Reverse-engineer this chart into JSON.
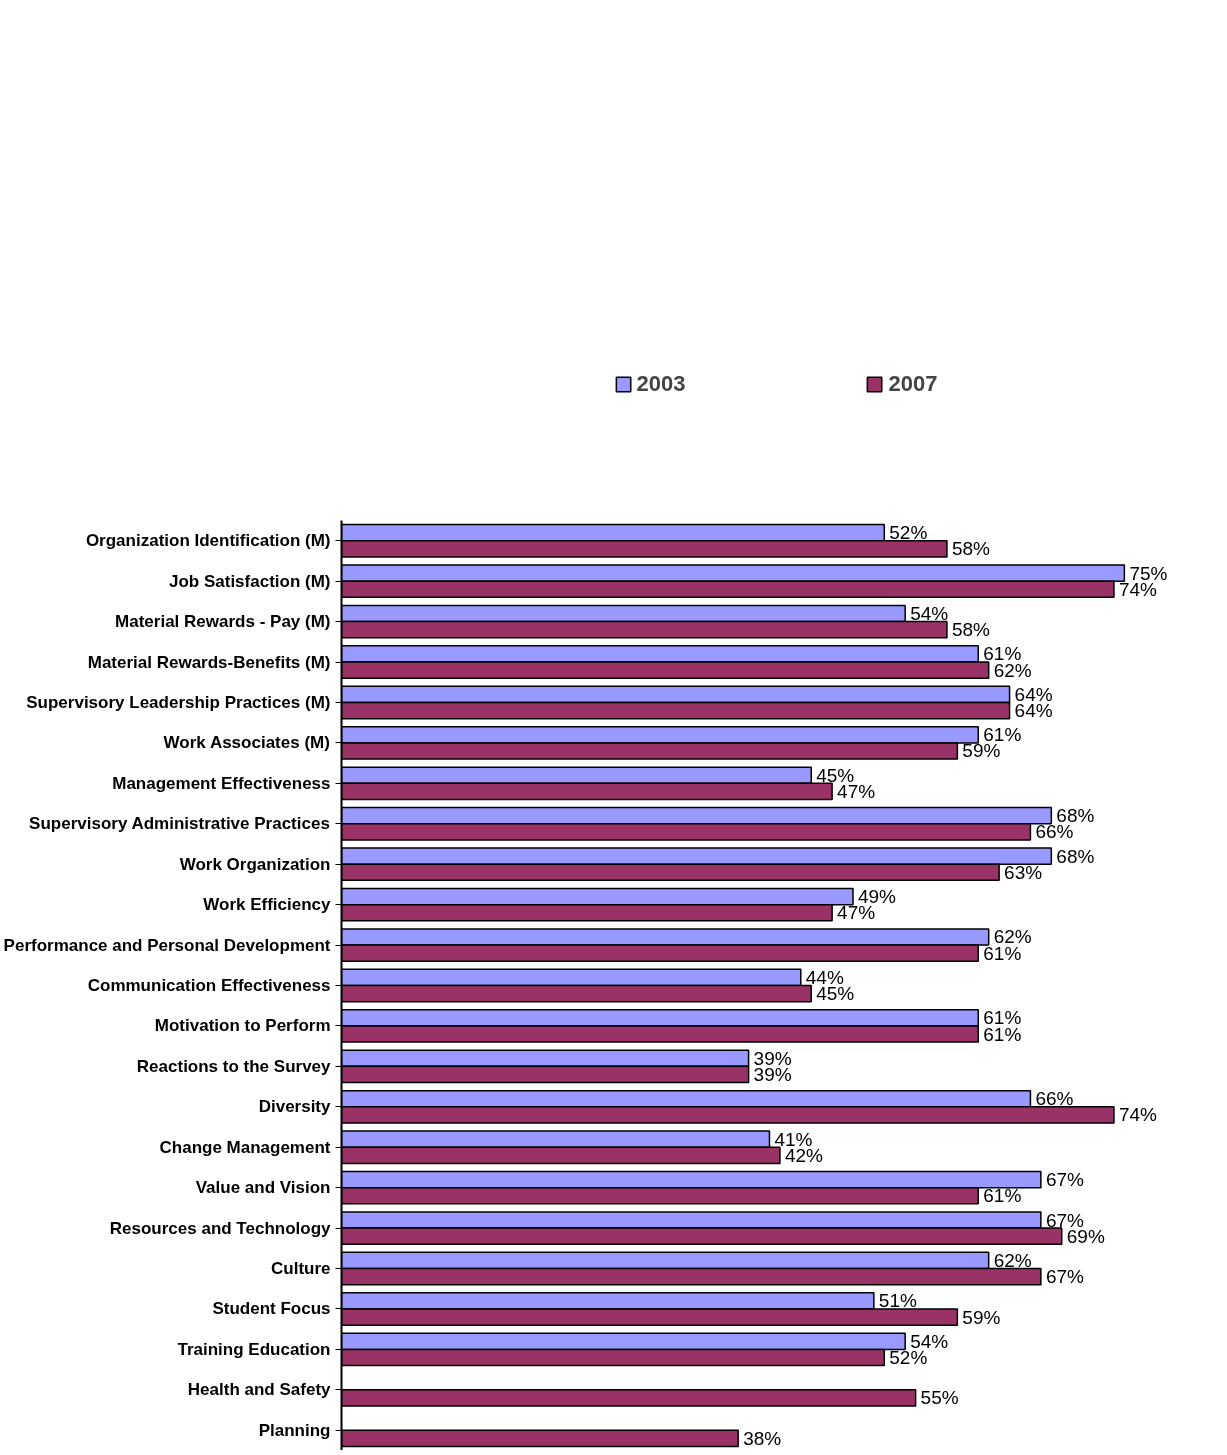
{
  "chart_data": {
    "type": "bar",
    "orientation": "horizontal",
    "legend": "top",
    "categories": [
      "Organization Identification (M)",
      "Job Satisfaction (M)",
      "Material Rewards - Pay (M)",
      "Material Rewards-Benefits (M)",
      "Supervisory Leadership Practices (M)",
      "Work Associates (M)",
      "Management Effectiveness",
      "Supervisory Administrative Practices",
      "Work Organization",
      "Work Efficiency",
      "Performance and Personal Development",
      "Communication Effectiveness",
      "Motivation to Perform",
      "Reactions to the Survey",
      "Diversity",
      "Change Management",
      "Value and Vision",
      "Resources and Technology",
      "Culture",
      "Student Focus",
      "Training Education",
      "Health and Safety",
      "Planning"
    ],
    "series": [
      {
        "name": "2003",
        "color": "#9999ff",
        "values": [
          52,
          75,
          54,
          61,
          64,
          61,
          45,
          68,
          68,
          49,
          62,
          44,
          61,
          39,
          66,
          41,
          67,
          67,
          62,
          51,
          54,
          null,
          null
        ],
        "value_labels": [
          "52%",
          "75%",
          "54%",
          "61%",
          "64%",
          "61%",
          "45%",
          "68%",
          "68%",
          "49%",
          "62%",
          "44%",
          "61%",
          "39%",
          "66%",
          "41%",
          "67%",
          "67%",
          "62%",
          "51%",
          "54%",
          null,
          null
        ]
      },
      {
        "name": "2007",
        "color": "#993366",
        "values": [
          58,
          74,
          58,
          62,
          64,
          59,
          47,
          66,
          63,
          47,
          61,
          45,
          61,
          39,
          74,
          42,
          61,
          69,
          67,
          59,
          52,
          55,
          38
        ],
        "value_labels": [
          "58%",
          "74%",
          "58%",
          "62%",
          "64%",
          "59%",
          "47%",
          "66%",
          "63%",
          "47%",
          "61%",
          "45%",
          "61%",
          "39%",
          "74%",
          "42%",
          "61%",
          "69%",
          "67%",
          "59%",
          "52%",
          "55%",
          "38%"
        ]
      }
    ]
  }
}
